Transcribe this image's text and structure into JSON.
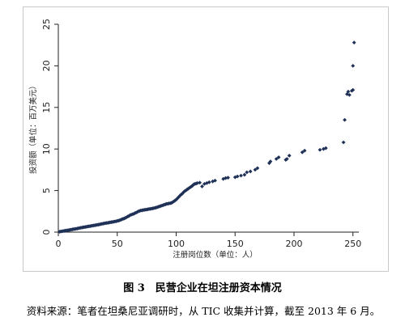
{
  "figure": {
    "caption": "图 3　民营企业在坦注册资本情况",
    "source": "资料来源：笔者在坦桑尼亚调研时，从 TIC 收集并计算，截至 2013 年 6 月。"
  },
  "colors": {
    "marker": "#1f3157",
    "axis": "#222222",
    "frame": "#c9c9c9"
  },
  "chart_data": {
    "type": "scatter",
    "xlabel": "注册岗位数（单位：人）",
    "ylabel": "投资额（单位：百万美元）",
    "xlim": [
      0,
      255
    ],
    "ylim": [
      0,
      25
    ],
    "xticks": [
      0,
      50,
      100,
      150,
      200,
      250
    ],
    "yticks": [
      0,
      5,
      10,
      15,
      20,
      25
    ],
    "grid": false,
    "legend": "none",
    "series": [
      {
        "points": [
          [
            1,
            0.05
          ],
          [
            2,
            0.08
          ],
          [
            3,
            0.1
          ],
          [
            4,
            0.12
          ],
          [
            5,
            0.15
          ],
          [
            6,
            0.18
          ],
          [
            7,
            0.2
          ],
          [
            8,
            0.22
          ],
          [
            9,
            0.25
          ],
          [
            10,
            0.28
          ],
          [
            11,
            0.3
          ],
          [
            12,
            0.33
          ],
          [
            13,
            0.36
          ],
          [
            14,
            0.38
          ],
          [
            15,
            0.4
          ],
          [
            16,
            0.43
          ],
          [
            17,
            0.46
          ],
          [
            18,
            0.5
          ],
          [
            19,
            0.52
          ],
          [
            20,
            0.55
          ],
          [
            21,
            0.58
          ],
          [
            22,
            0.6
          ],
          [
            23,
            0.62
          ],
          [
            24,
            0.65
          ],
          [
            25,
            0.68
          ],
          [
            26,
            0.7
          ],
          [
            27,
            0.72
          ],
          [
            28,
            0.75
          ],
          [
            29,
            0.78
          ],
          [
            30,
            0.8
          ],
          [
            31,
            0.82
          ],
          [
            32,
            0.85
          ],
          [
            33,
            0.88
          ],
          [
            34,
            0.9
          ],
          [
            35,
            0.93
          ],
          [
            36,
            0.96
          ],
          [
            37,
            1.0
          ],
          [
            38,
            1.02
          ],
          [
            39,
            1.05
          ],
          [
            40,
            1.08
          ],
          [
            41,
            1.1
          ],
          [
            42,
            1.12
          ],
          [
            43,
            1.15
          ],
          [
            44,
            1.18
          ],
          [
            45,
            1.2
          ],
          [
            46,
            1.22
          ],
          [
            47,
            1.25
          ],
          [
            48,
            1.28
          ],
          [
            49,
            1.3
          ],
          [
            50,
            1.35
          ],
          [
            51,
            1.38
          ],
          [
            52,
            1.42
          ],
          [
            53,
            1.48
          ],
          [
            54,
            1.55
          ],
          [
            55,
            1.6
          ],
          [
            56,
            1.65
          ],
          [
            57,
            1.72
          ],
          [
            58,
            1.8
          ],
          [
            59,
            1.88
          ],
          [
            60,
            1.95
          ],
          [
            61,
            2.05
          ],
          [
            62,
            2.1
          ],
          [
            63,
            2.15
          ],
          [
            64,
            2.2
          ],
          [
            65,
            2.28
          ],
          [
            66,
            2.35
          ],
          [
            67,
            2.42
          ],
          [
            68,
            2.5
          ],
          [
            69,
            2.55
          ],
          [
            70,
            2.6
          ],
          [
            71,
            2.62
          ],
          [
            72,
            2.65
          ],
          [
            73,
            2.68
          ],
          [
            74,
            2.7
          ],
          [
            75,
            2.72
          ],
          [
            76,
            2.75
          ],
          [
            77,
            2.78
          ],
          [
            78,
            2.8
          ],
          [
            79,
            2.82
          ],
          [
            80,
            2.85
          ],
          [
            81,
            2.88
          ],
          [
            82,
            2.92
          ],
          [
            83,
            2.95
          ],
          [
            84,
            3.0
          ],
          [
            85,
            3.05
          ],
          [
            86,
            3.1
          ],
          [
            87,
            3.15
          ],
          [
            88,
            3.2
          ],
          [
            89,
            3.25
          ],
          [
            90,
            3.3
          ],
          [
            91,
            3.35
          ],
          [
            92,
            3.4
          ],
          [
            93,
            3.42
          ],
          [
            94,
            3.45
          ],
          [
            95,
            3.48
          ],
          [
            96,
            3.52
          ],
          [
            97,
            3.6
          ],
          [
            98,
            3.7
          ],
          [
            99,
            3.8
          ],
          [
            100,
            3.9
          ],
          [
            101,
            4.05
          ],
          [
            102,
            4.2
          ],
          [
            103,
            4.35
          ],
          [
            104,
            4.5
          ],
          [
            105,
            4.6
          ],
          [
            106,
            4.75
          ],
          [
            107,
            4.9
          ],
          [
            108,
            5.0
          ],
          [
            109,
            5.1
          ],
          [
            110,
            5.2
          ],
          [
            111,
            5.3
          ],
          [
            112,
            5.4
          ],
          [
            113,
            5.5
          ],
          [
            114,
            5.6
          ],
          [
            115,
            5.75
          ],
          [
            116,
            5.8
          ],
          [
            117,
            5.85
          ],
          [
            118,
            5.9
          ],
          [
            120,
            5.95
          ],
          [
            122,
            5.5
          ],
          [
            124,
            5.8
          ],
          [
            126,
            5.9
          ],
          [
            128,
            6.0
          ],
          [
            131,
            6.1
          ],
          [
            133,
            6.2
          ],
          [
            140,
            6.4
          ],
          [
            142,
            6.5
          ],
          [
            144,
            6.55
          ],
          [
            150,
            6.6
          ],
          [
            152,
            6.7
          ],
          [
            155,
            6.8
          ],
          [
            158,
            6.9
          ],
          [
            160,
            7.2
          ],
          [
            163,
            7.3
          ],
          [
            167,
            7.5
          ],
          [
            169,
            7.7
          ],
          [
            179,
            8.3
          ],
          [
            180,
            8.5
          ],
          [
            185,
            8.8
          ],
          [
            187,
            9.0
          ],
          [
            193,
            8.7
          ],
          [
            194,
            8.8
          ],
          [
            196,
            9.2
          ],
          [
            207,
            9.6
          ],
          [
            209,
            9.8
          ],
          [
            222,
            9.9
          ],
          [
            225,
            10.0
          ],
          [
            227,
            10.1
          ],
          [
            242,
            10.8
          ],
          [
            243,
            13.5
          ],
          [
            245,
            16.6
          ],
          [
            246,
            16.9
          ],
          [
            247,
            16.5
          ],
          [
            249,
            17.0
          ],
          [
            250,
            17.1
          ],
          [
            250,
            20.0
          ],
          [
            251,
            22.8
          ]
        ]
      }
    ]
  }
}
